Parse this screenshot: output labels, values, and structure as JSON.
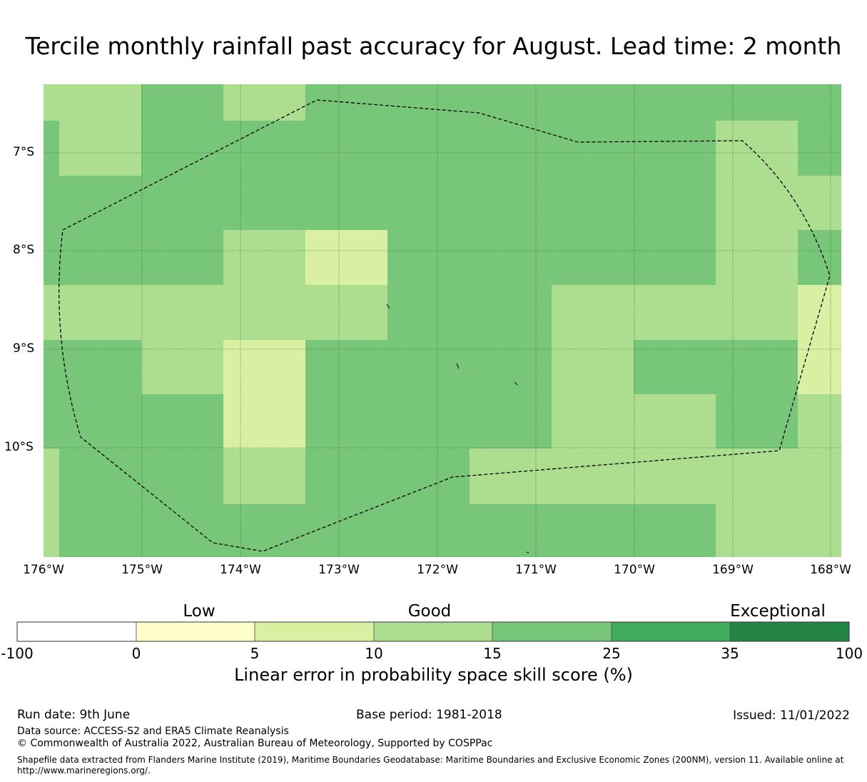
{
  "title": "Tercile monthly rainfall past accuracy for August. Lead time: 2 month",
  "map": {
    "lat_labels": [
      "7°S",
      "8°S",
      "9°S",
      "10°S"
    ],
    "lon_labels": [
      "176°W",
      "175°W",
      "174°W",
      "173°W",
      "172°W",
      "171°W",
      "170°W",
      "169°W",
      "168°W"
    ],
    "colors": {
      "c0": "#ffffcc",
      "c5": "#d9f0a3",
      "c10": "#addd8e",
      "c15": "#78c679",
      "c25": "#41ab5d",
      "c35": "#238443",
      "boundary": "#000000"
    }
  },
  "colorbar": {
    "categories": [
      "Low",
      "Good",
      "Exceptional"
    ],
    "ticks": [
      "-100",
      "0",
      "5",
      "10",
      "15",
      "25",
      "35",
      "100"
    ],
    "colors": [
      "#ffffff",
      "#ffffcc",
      "#d9f0a3",
      "#addd8e",
      "#78c679",
      "#41ab5d",
      "#238443"
    ],
    "label": "Linear error in probability space skill score (%)"
  },
  "footer": {
    "run_date": "Run date: 9th June",
    "base_period": "Base period: 1981-2018",
    "issued": "Issued: 11/01/2022",
    "data_source": "Data source: ACCESS-S2 and ERA5 Climate Reanalysis",
    "copyright": "© Commonwealth of Australia 2022, Australian Bureau of Meteorology, Supported by COSPPac",
    "shapefile_line1": "Shapefile data extracted from Flanders Marine Institute (2019), Maritime Boundaries Geodatabase: Maritime Boundaries and Exclusive Economic Zones (200NM), version 11. Available online at",
    "shapefile_line2": "http://www.marineregions.org/."
  }
}
